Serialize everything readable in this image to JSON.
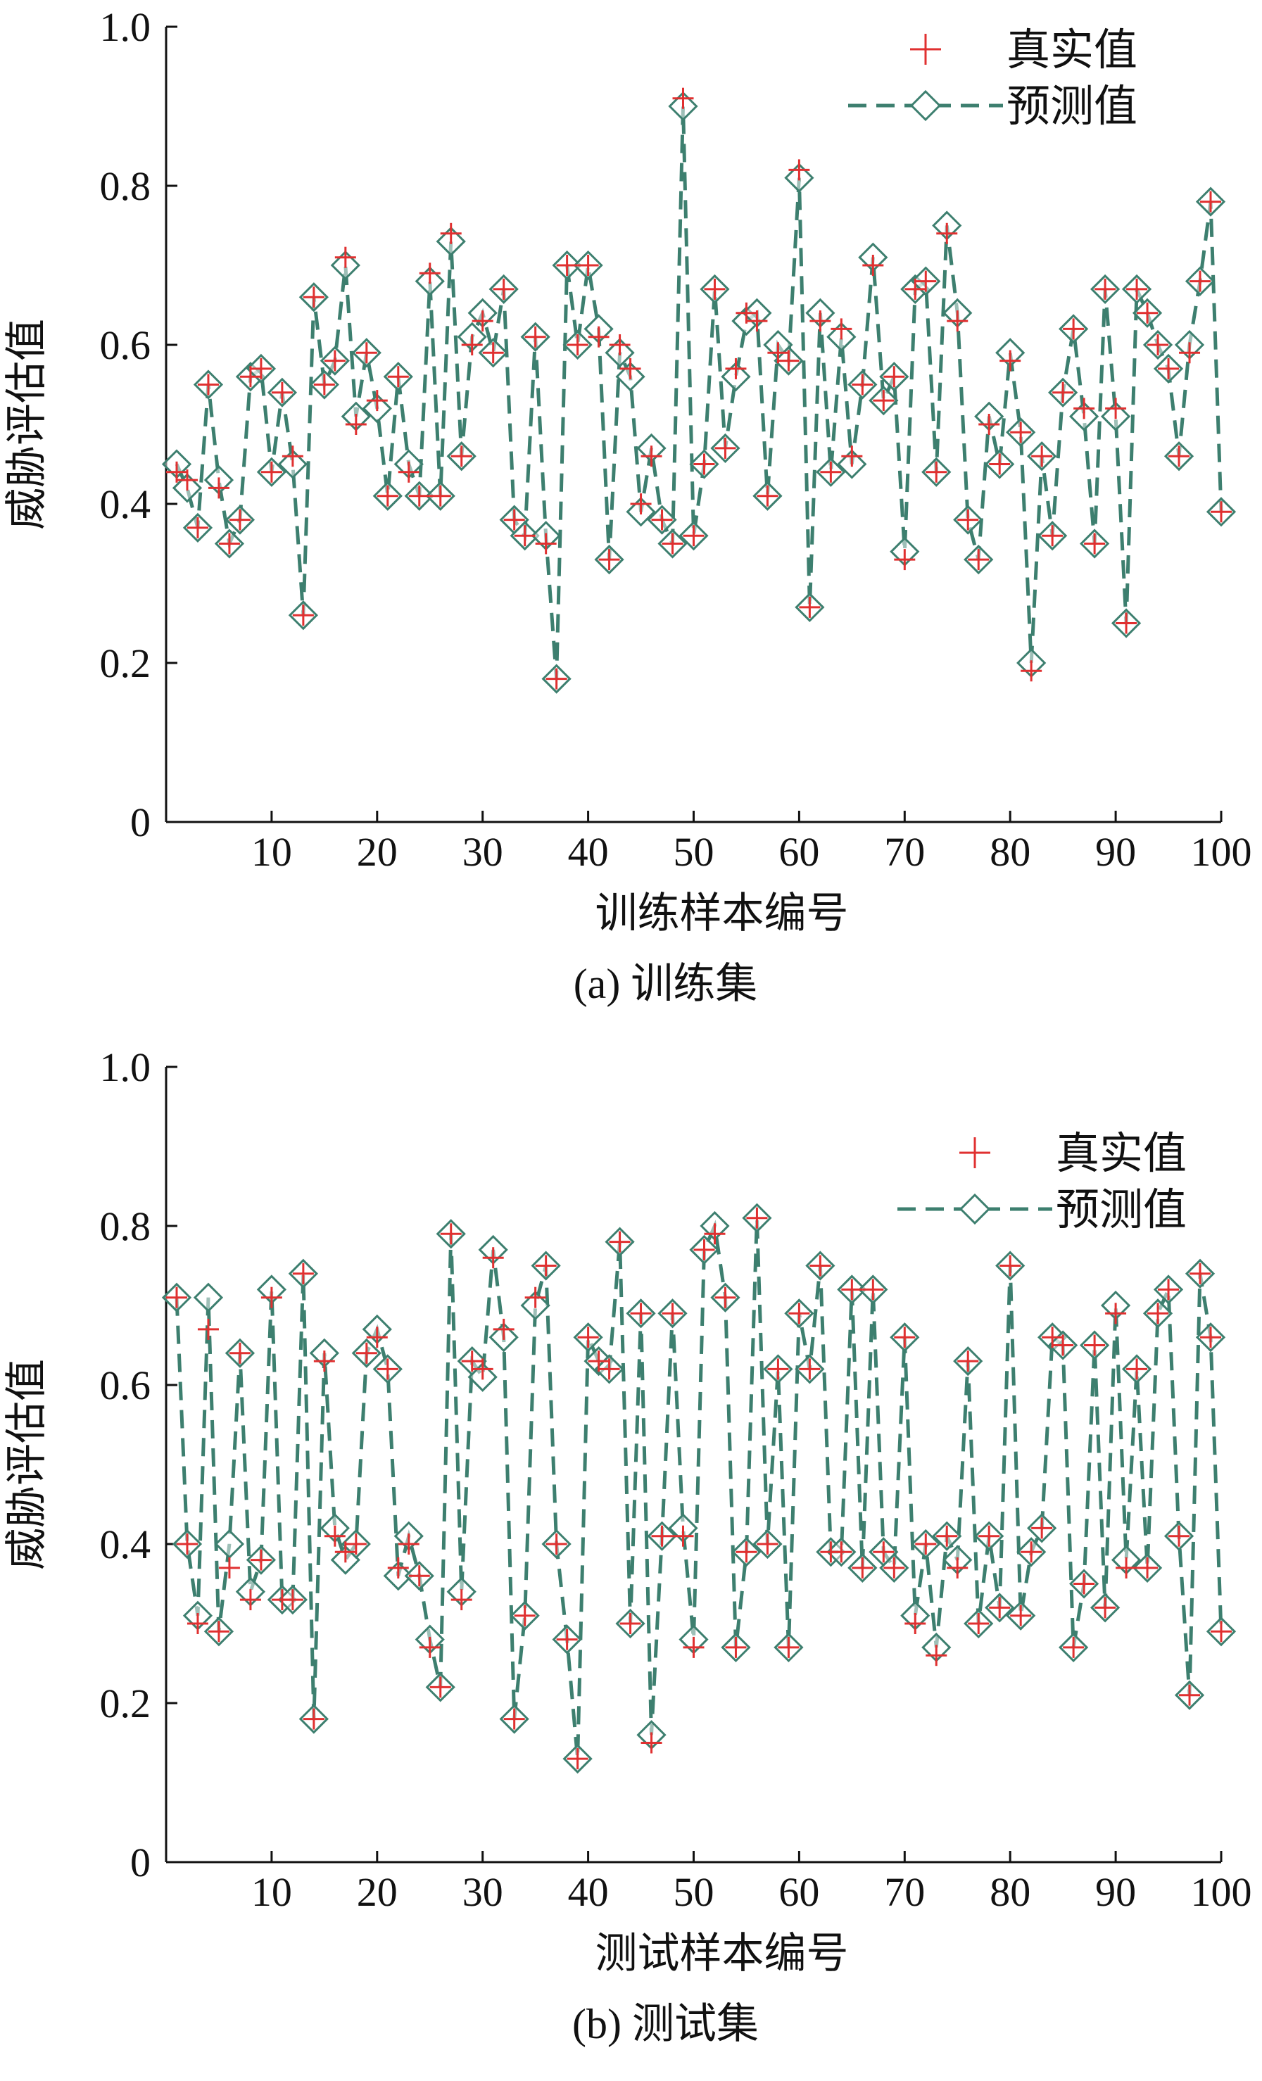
{
  "chart_data": [
    {
      "type": "line",
      "caption": "(a) 训练集",
      "xlabel": "训练样本编号",
      "ylabel": "威胁评估值",
      "xlim": [
        0,
        100
      ],
      "ylim": [
        0,
        1.0
      ],
      "xticks": [
        "10",
        "20",
        "30",
        "40",
        "50",
        "60",
        "70",
        "80",
        "90",
        "100"
      ],
      "yticks": [
        "0",
        "0.2",
        "0.4",
        "0.6",
        "0.8",
        "1.0"
      ],
      "legend_position": "top-right",
      "series": [
        {
          "name": "真实值",
          "marker": "plus",
          "color": "#e03030",
          "values": [
            0.44,
            0.43,
            0.37,
            0.55,
            0.42,
            0.35,
            0.38,
            0.56,
            0.57,
            0.44,
            0.54,
            0.46,
            0.26,
            0.66,
            0.55,
            0.58,
            0.71,
            0.5,
            0.59,
            0.53,
            0.41,
            0.56,
            0.44,
            0.41,
            0.69,
            0.41,
            0.74,
            0.46,
            0.6,
            0.63,
            0.59,
            0.67,
            0.38,
            0.36,
            0.61,
            0.35,
            0.18,
            0.7,
            0.6,
            0.7,
            0.61,
            0.33,
            0.6,
            0.57,
            0.4,
            0.46,
            0.38,
            0.35,
            0.91,
            0.36,
            0.45,
            0.67,
            0.47,
            0.57,
            0.64,
            0.63,
            0.41,
            0.59,
            0.58,
            0.82,
            0.27,
            0.63,
            0.44,
            0.62,
            0.46,
            0.55,
            0.7,
            0.53,
            0.56,
            0.33,
            0.67,
            0.68,
            0.44,
            0.74,
            0.63,
            0.38,
            0.33,
            0.5,
            0.45,
            0.58,
            0.49,
            0.19,
            0.46,
            0.36,
            0.54,
            0.62,
            0.52,
            0.35,
            0.67,
            0.52,
            0.25,
            0.67,
            0.64,
            0.6,
            0.57,
            0.46,
            0.59,
            0.68,
            0.78,
            0.39
          ]
        },
        {
          "name": "预测值",
          "marker": "diamond",
          "color": "#3d7f6f",
          "values": [
            0.45,
            0.42,
            0.37,
            0.55,
            0.43,
            0.35,
            0.38,
            0.56,
            0.57,
            0.44,
            0.54,
            0.45,
            0.26,
            0.66,
            0.55,
            0.58,
            0.7,
            0.51,
            0.59,
            0.52,
            0.41,
            0.56,
            0.45,
            0.41,
            0.68,
            0.41,
            0.73,
            0.46,
            0.61,
            0.64,
            0.59,
            0.67,
            0.38,
            0.36,
            0.61,
            0.36,
            0.18,
            0.7,
            0.6,
            0.7,
            0.62,
            0.33,
            0.59,
            0.56,
            0.39,
            0.47,
            0.38,
            0.35,
            0.9,
            0.36,
            0.45,
            0.67,
            0.47,
            0.56,
            0.63,
            0.64,
            0.41,
            0.6,
            0.58,
            0.81,
            0.27,
            0.64,
            0.44,
            0.61,
            0.45,
            0.55,
            0.71,
            0.53,
            0.56,
            0.34,
            0.67,
            0.68,
            0.44,
            0.75,
            0.64,
            0.38,
            0.33,
            0.51,
            0.45,
            0.59,
            0.49,
            0.2,
            0.46,
            0.36,
            0.54,
            0.62,
            0.51,
            0.35,
            0.67,
            0.51,
            0.25,
            0.67,
            0.64,
            0.6,
            0.57,
            0.46,
            0.6,
            0.68,
            0.78,
            0.39
          ]
        }
      ]
    },
    {
      "type": "line",
      "caption": "(b) 测试集",
      "xlabel": "测试样本编号",
      "ylabel": "威胁评估值",
      "xlim": [
        0,
        100
      ],
      "ylim": [
        0,
        1.0
      ],
      "xticks": [
        "10",
        "20",
        "30",
        "40",
        "50",
        "60",
        "70",
        "80",
        "90",
        "100"
      ],
      "yticks": [
        "0",
        "0.2",
        "0.4",
        "0.6",
        "0.8",
        "1.0"
      ],
      "legend_position": "top-right",
      "series": [
        {
          "name": "真实值",
          "marker": "plus",
          "color": "#e03030",
          "values": [
            0.71,
            0.4,
            0.3,
            0.67,
            0.29,
            0.37,
            0.64,
            0.33,
            0.38,
            0.71,
            0.33,
            0.33,
            0.74,
            0.18,
            0.63,
            0.41,
            0.39,
            0.4,
            0.64,
            0.66,
            0.62,
            0.37,
            0.4,
            0.36,
            0.27,
            0.22,
            0.79,
            0.33,
            0.63,
            0.62,
            0.76,
            0.67,
            0.18,
            0.31,
            0.71,
            0.75,
            0.4,
            0.28,
            0.13,
            0.66,
            0.63,
            0.62,
            0.78,
            0.3,
            0.69,
            0.15,
            0.41,
            0.69,
            0.41,
            0.27,
            0.77,
            0.79,
            0.71,
            0.27,
            0.39,
            0.81,
            0.4,
            0.62,
            0.27,
            0.69,
            0.62,
            0.75,
            0.39,
            0.39,
            0.72,
            0.37,
            0.72,
            0.39,
            0.37,
            0.66,
            0.3,
            0.4,
            0.26,
            0.41,
            0.37,
            0.63,
            0.3,
            0.41,
            0.32,
            0.75,
            0.31,
            0.39,
            0.42,
            0.66,
            0.65,
            0.27,
            0.35,
            0.65,
            0.32,
            0.69,
            0.37,
            0.62,
            0.37,
            0.69,
            0.72,
            0.41,
            0.21,
            0.74,
            0.66,
            0.29
          ]
        },
        {
          "name": "预测值",
          "marker": "diamond",
          "color": "#3d7f6f",
          "values": [
            0.71,
            0.4,
            0.31,
            0.71,
            0.29,
            0.4,
            0.64,
            0.34,
            0.38,
            0.72,
            0.33,
            0.33,
            0.74,
            0.18,
            0.64,
            0.42,
            0.38,
            0.4,
            0.64,
            0.67,
            0.62,
            0.36,
            0.41,
            0.36,
            0.28,
            0.22,
            0.79,
            0.34,
            0.63,
            0.61,
            0.77,
            0.66,
            0.18,
            0.31,
            0.7,
            0.75,
            0.4,
            0.28,
            0.13,
            0.66,
            0.63,
            0.62,
            0.78,
            0.3,
            0.69,
            0.16,
            0.41,
            0.69,
            0.42,
            0.28,
            0.77,
            0.8,
            0.71,
            0.27,
            0.39,
            0.81,
            0.4,
            0.62,
            0.27,
            0.69,
            0.62,
            0.75,
            0.39,
            0.39,
            0.72,
            0.37,
            0.72,
            0.39,
            0.37,
            0.66,
            0.31,
            0.4,
            0.27,
            0.41,
            0.38,
            0.63,
            0.3,
            0.41,
            0.32,
            0.75,
            0.31,
            0.39,
            0.42,
            0.66,
            0.65,
            0.27,
            0.35,
            0.65,
            0.32,
            0.7,
            0.38,
            0.62,
            0.37,
            0.69,
            0.72,
            0.41,
            0.21,
            0.74,
            0.66,
            0.29
          ]
        }
      ]
    }
  ]
}
